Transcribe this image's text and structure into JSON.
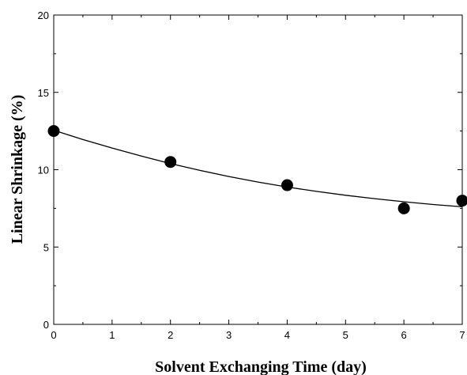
{
  "chart_data": {
    "type": "scatter",
    "title": "",
    "xlabel": "Solvent Exchanging Time  (day)",
    "ylabel": "Linear Shrinkage  (%)",
    "xlim": [
      0,
      7
    ],
    "ylim": [
      0,
      20
    ],
    "x_ticks": [
      0,
      1,
      2,
      3,
      4,
      5,
      6,
      7
    ],
    "y_ticks": [
      0,
      5,
      10,
      15,
      20
    ],
    "grid": false,
    "legend": "none",
    "series": [
      {
        "type": "scatter",
        "x": [
          0,
          2,
          4,
          6,
          7
        ],
        "y": [
          12.5,
          10.5,
          9.0,
          7.5,
          8.0
        ],
        "color": "#000000"
      },
      {
        "type": "line",
        "x": [
          0,
          0.5,
          1,
          1.5,
          2,
          2.5,
          3,
          3.5,
          4,
          4.5,
          5,
          5.5,
          6,
          6.5,
          7
        ],
        "y": [
          12.55,
          11.95,
          11.4,
          10.88,
          10.4,
          9.96,
          9.56,
          9.2,
          8.88,
          8.6,
          8.35,
          8.13,
          7.93,
          7.75,
          7.6
        ],
        "color": "#000000"
      }
    ]
  }
}
